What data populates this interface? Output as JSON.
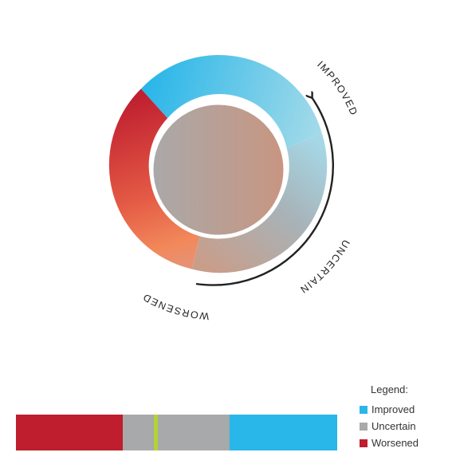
{
  "diagram": {
    "ring_labels": {
      "improved": "IMPROVED",
      "uncertain": "UNCERTAIN",
      "worsened": "WORSENED"
    }
  },
  "colors": {
    "improved": "#29b6e9",
    "uncertain": "#a7a9ab",
    "worsened": "#be1e2d",
    "worsened_light": "#f2885a",
    "marker": "#b4d334",
    "center_left": "#a9a9a9",
    "center_right": "#c99580"
  },
  "bar": {
    "segments": [
      {
        "category": "worsened",
        "fraction": 0.333
      },
      {
        "category": "uncertain",
        "fraction": 0.333
      },
      {
        "category": "improved",
        "fraction": 0.334
      }
    ],
    "marker_fraction": 0.43
  },
  "legend": {
    "title": "Legend:",
    "items": [
      {
        "label": "Improved",
        "color": "#29b6e9"
      },
      {
        "label": "Uncertain",
        "color": "#a7a9ab"
      },
      {
        "label": "Worsened",
        "color": "#be1e2d"
      }
    ]
  }
}
